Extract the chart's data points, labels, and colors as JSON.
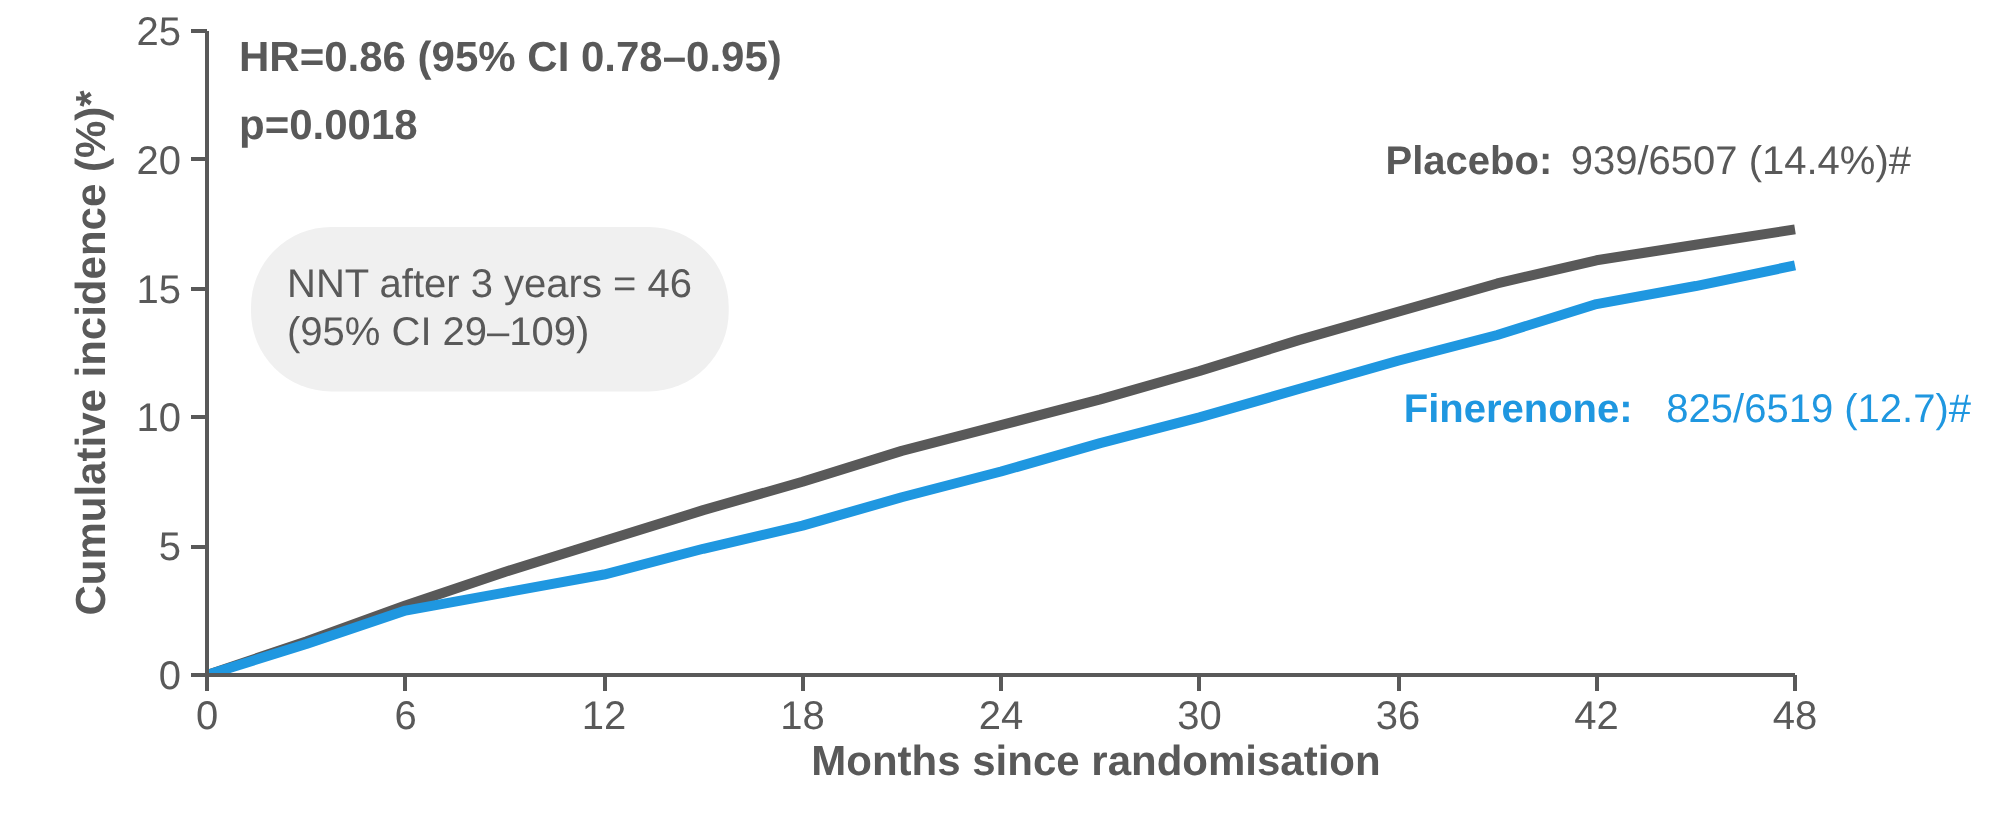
{
  "chart_data": {
    "type": "line",
    "xlabel": "Months since randomisation",
    "ylabel": "Cumulative incidence (%)*",
    "xlim": [
      0,
      48
    ],
    "ylim": [
      0,
      25
    ],
    "xticks": [
      0,
      6,
      12,
      18,
      24,
      30,
      36,
      42,
      48
    ],
    "yticks": [
      0,
      5,
      10,
      15,
      20,
      25
    ],
    "grid": false,
    "marker": "none",
    "line_style": "solid",
    "series": [
      {
        "name": "Placebo:",
        "color": "#595959",
        "x": [
          0,
          3,
          6,
          9,
          12,
          15,
          18,
          21,
          24,
          27,
          30,
          33,
          36,
          39,
          42,
          45,
          48
        ],
        "values": [
          0,
          1.3,
          2.7,
          4.0,
          5.2,
          6.4,
          7.5,
          8.7,
          9.7,
          10.7,
          11.8,
          13.0,
          14.1,
          15.2,
          16.1,
          16.7,
          17.3
        ]
      },
      {
        "name": "Finerenone:",
        "color": "#1f97e0",
        "x": [
          0,
          3,
          6,
          9,
          12,
          15,
          18,
          21,
          24,
          27,
          30,
          33,
          36,
          39,
          42,
          45,
          48
        ],
        "values": [
          0,
          1.2,
          2.5,
          3.2,
          3.9,
          4.9,
          5.8,
          6.9,
          7.9,
          9.0,
          10.0,
          11.1,
          12.2,
          13.2,
          14.4,
          15.1,
          15.9
        ]
      }
    ],
    "annotations": [
      "HR=0.86 (95% CI 0.78–0.95)",
      "p=0.0018",
      "NNT after 3 years = 46\n(95% CI 29–109)",
      "939/6507 (14.4%)#",
      "825/6519 (12.7)#"
    ]
  }
}
